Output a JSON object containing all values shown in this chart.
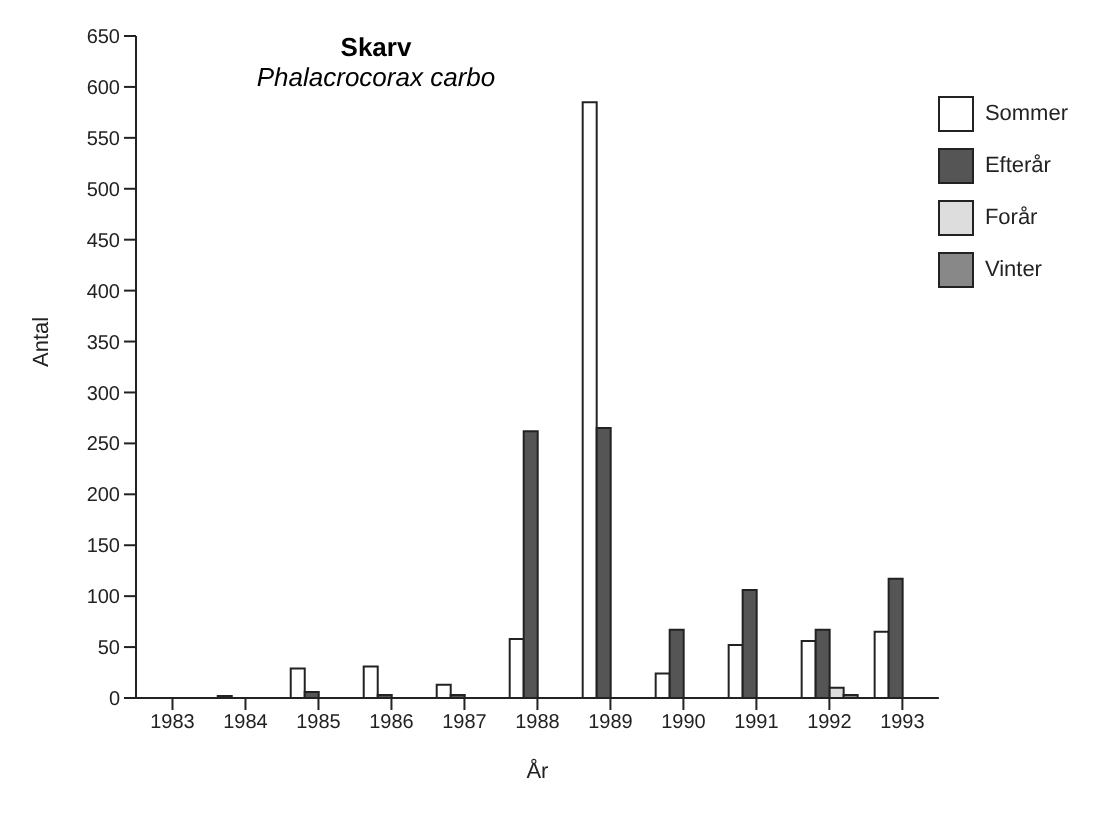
{
  "chart_data": {
    "type": "bar",
    "title": "Skarv",
    "subtitle": "Phalacrocorax carbo",
    "xlabel": "År",
    "ylabel": "Antal",
    "categories": [
      "1983",
      "1984",
      "1985",
      "1986",
      "1987",
      "1988",
      "1989",
      "1990",
      "1991",
      "1992",
      "1993"
    ],
    "series": [
      {
        "name": "Sommer",
        "color": "#ffffff",
        "values": [
          0,
          2,
          29,
          31,
          13,
          58,
          585,
          24,
          52,
          56,
          65
        ]
      },
      {
        "name": "Efterår",
        "color": "#555555",
        "values": [
          0,
          0,
          6,
          3,
          3,
          262,
          265,
          67,
          106,
          67,
          117
        ]
      },
      {
        "name": "Forår",
        "color": "#dddddd",
        "values": [
          0,
          0,
          0,
          0,
          0,
          0,
          0,
          0,
          0,
          10,
          0
        ]
      },
      {
        "name": "Vinter",
        "color": "#888888",
        "values": [
          0,
          0,
          0,
          0,
          0,
          0,
          0,
          0,
          0,
          3,
          0
        ]
      }
    ],
    "ylim": [
      0,
      650
    ],
    "yticks": [
      0,
      50,
      100,
      150,
      200,
      250,
      300,
      350,
      400,
      450,
      500,
      550,
      600,
      650
    ],
    "grid": false,
    "legend": "top right"
  }
}
